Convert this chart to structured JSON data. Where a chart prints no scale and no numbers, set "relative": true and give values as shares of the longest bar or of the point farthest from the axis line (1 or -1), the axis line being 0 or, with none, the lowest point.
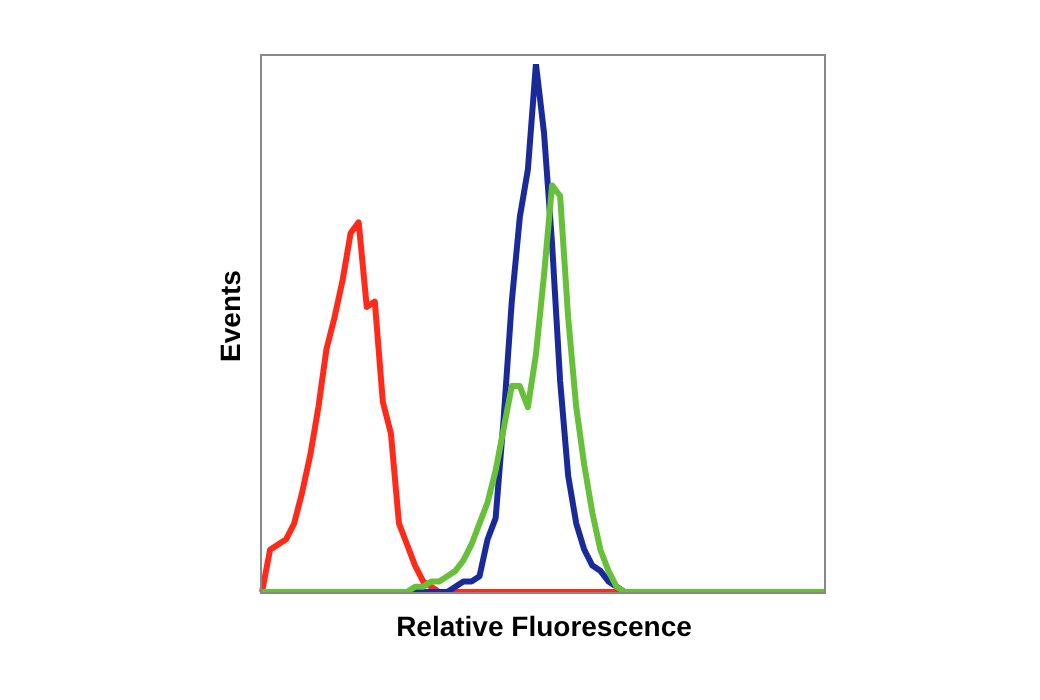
{
  "chart_data": {
    "type": "line",
    "relative": true,
    "tick_labels": false,
    "legend": false,
    "marker": "none",
    "xlabel": "Relative Fluorescence",
    "ylabel": "Events",
    "categories": [
      null,
      null,
      null,
      null,
      null,
      null,
      null,
      null,
      null,
      null,
      null,
      null,
      null,
      null,
      null,
      null,
      null,
      null,
      null,
      null,
      null,
      null,
      null,
      null,
      null,
      null,
      null,
      null,
      null,
      null,
      null,
      null,
      null,
      null,
      null,
      null,
      null,
      null,
      null,
      null,
      null,
      null,
      null,
      null,
      null,
      null,
      null,
      null,
      null,
      null,
      null,
      null,
      null,
      null,
      null,
      null,
      null,
      null,
      null,
      null,
      null,
      null,
      null,
      null,
      null,
      null,
      null,
      null,
      null,
      null,
      null
    ],
    "series": [
      {
        "color": "#ff2a1a",
        "values": [
          0,
          0.08,
          0.09,
          0.1,
          0.13,
          0.19,
          0.26,
          0.35,
          0.46,
          0.52,
          0.59,
          0.68,
          0.7,
          0.54,
          0.55,
          0.36,
          0.3,
          0.13,
          0.09,
          0.05,
          0.02,
          0.01,
          0,
          0,
          0,
          0,
          0,
          0,
          0,
          0,
          0,
          0,
          0,
          0,
          0,
          0,
          0,
          0,
          0,
          0,
          0,
          0,
          0,
          0,
          0,
          0,
          null,
          null,
          null,
          null,
          null,
          null,
          null,
          null,
          null,
          null,
          null,
          null,
          null,
          null,
          null,
          null,
          null,
          null,
          null,
          null,
          null,
          null,
          null,
          null,
          null
        ]
      },
      {
        "color": "#1a2a9a",
        "values": [
          null,
          null,
          null,
          null,
          null,
          null,
          null,
          null,
          null,
          null,
          null,
          null,
          null,
          null,
          null,
          null,
          null,
          null,
          0,
          0,
          0,
          0,
          0,
          0,
          0.01,
          0.02,
          0.02,
          0.03,
          0.1,
          0.14,
          0.33,
          0.55,
          0.71,
          0.8,
          1,
          0.87,
          0.66,
          0.4,
          0.22,
          0.13,
          0.08,
          0.05,
          0.04,
          0.02,
          0.01,
          0,
          null,
          null,
          null,
          null,
          null,
          null,
          null,
          null,
          null,
          null,
          null,
          null,
          null,
          null,
          null,
          null,
          null,
          null,
          null,
          null,
          null,
          null,
          null,
          null,
          null
        ]
      },
      {
        "color": "#66c03a",
        "values": [
          0,
          0,
          0,
          0,
          0,
          0,
          0,
          0,
          0,
          0,
          0,
          0,
          0,
          0,
          0,
          0,
          0,
          0,
          0,
          0.01,
          0.01,
          0.02,
          0.02,
          0.03,
          0.04,
          0.06,
          0.09,
          0.13,
          0.17,
          0.23,
          0.31,
          0.39,
          0.39,
          0.35,
          0.45,
          0.6,
          0.77,
          0.75,
          0.52,
          0.35,
          0.24,
          0.15,
          0.08,
          0.04,
          0.01,
          0,
          0,
          0,
          0,
          0,
          0,
          0,
          0,
          0,
          0,
          0,
          0,
          0,
          0,
          0,
          0,
          0,
          0,
          0,
          0,
          0,
          0,
          0,
          0,
          0,
          0
        ]
      }
    ]
  }
}
